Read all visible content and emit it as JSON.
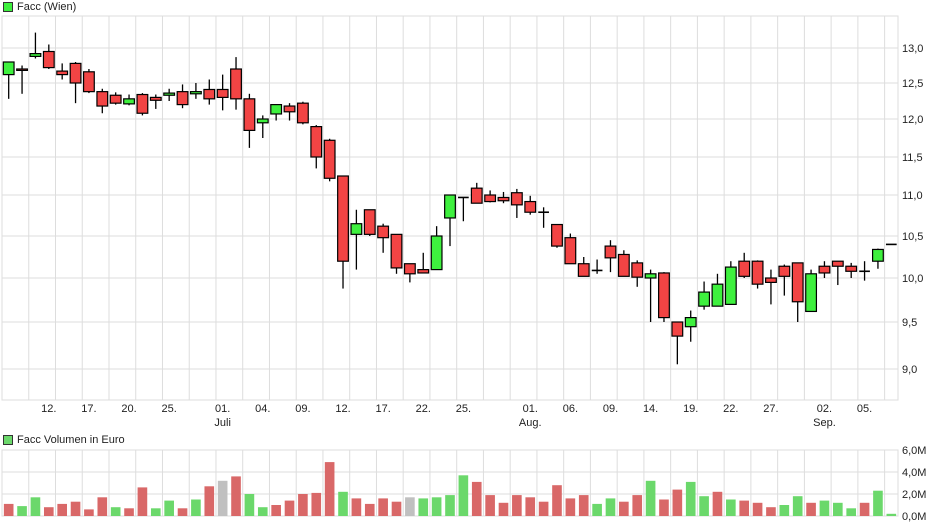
{
  "price_legend": {
    "label": "Facc (Wien)",
    "color": "#3ef03e"
  },
  "volume_legend": {
    "label": "Facc Volumen in Euro",
    "color": "#6bd86b"
  },
  "colors": {
    "up": "#3ef03e",
    "down": "#f24444",
    "vol_up": "#6bd86b",
    "vol_down": "#d96868",
    "vol_neutral": "#c0c0c0",
    "grid": "#dddddd"
  },
  "chart_data": [
    {
      "type": "candlestick",
      "title": "Facc (Wien)",
      "ylabel": "",
      "ylim": [
        8.6,
        13.4
      ],
      "y_ticks": [
        "9,0",
        "9,5",
        "10,0",
        "10,5",
        "11,0",
        "11,5",
        "12,0",
        "12,5",
        "13,0"
      ],
      "x_ticks": [
        "12.",
        "17.",
        "20.",
        "25.",
        "01.",
        "04.",
        "09.",
        "12.",
        "17.",
        "22.",
        "25.",
        "01.",
        "06.",
        "09.",
        "14.",
        "19.",
        "22.",
        "27.",
        "02.",
        "05."
      ],
      "x_month_labels": [
        {
          "at": "01.",
          "index": 4,
          "label": "Juli"
        },
        {
          "at": "01.",
          "index": 11,
          "label": "Aug."
        },
        {
          "at": "02.",
          "index": 18,
          "label": "Sep."
        }
      ],
      "grid": true,
      "ohlc": [
        [
          12.62,
          12.72,
          12.28,
          12.8
        ],
        [
          12.7,
          12.75,
          12.35,
          12.68
        ],
        [
          12.88,
          13.22,
          12.85,
          12.92
        ],
        [
          12.95,
          13.05,
          12.7,
          12.72
        ],
        [
          12.67,
          12.78,
          12.55,
          12.62
        ],
        [
          12.78,
          12.8,
          12.22,
          12.5
        ],
        [
          12.66,
          12.7,
          12.36,
          12.38
        ],
        [
          12.38,
          12.42,
          12.08,
          12.18
        ],
        [
          12.33,
          12.37,
          12.2,
          12.22
        ],
        [
          12.21,
          12.34,
          12.19,
          12.28
        ],
        [
          12.34,
          12.36,
          12.05,
          12.08
        ],
        [
          12.3,
          12.34,
          12.14,
          12.26
        ],
        [
          12.33,
          12.42,
          12.25,
          12.36
        ],
        [
          12.38,
          12.48,
          12.15,
          12.2
        ],
        [
          12.35,
          12.5,
          12.28,
          12.38
        ],
        [
          12.41,
          12.55,
          12.2,
          12.28
        ],
        [
          12.41,
          12.62,
          12.12,
          12.3
        ],
        [
          12.7,
          12.87,
          12.13,
          12.28
        ],
        [
          12.28,
          12.35,
          11.62,
          11.85
        ],
        [
          11.95,
          12.05,
          11.75,
          12.0
        ],
        [
          12.07,
          12.2,
          11.98,
          12.2
        ],
        [
          12.18,
          12.22,
          11.98,
          12.1
        ],
        [
          12.22,
          12.24,
          11.93,
          11.95
        ],
        [
          11.9,
          11.92,
          11.35,
          11.5
        ],
        [
          11.72,
          11.74,
          11.18,
          11.22
        ],
        [
          11.25,
          11.25,
          9.88,
          10.2
        ],
        [
          10.52,
          10.82,
          10.1,
          10.65
        ],
        [
          10.82,
          10.82,
          10.5,
          10.52
        ],
        [
          10.62,
          10.65,
          10.3,
          10.48
        ],
        [
          10.52,
          10.52,
          10.05,
          10.12
        ],
        [
          10.17,
          10.17,
          9.95,
          10.05
        ],
        [
          10.1,
          10.3,
          10.06,
          10.06
        ],
        [
          10.1,
          10.62,
          10.1,
          10.5
        ],
        [
          10.72,
          11.0,
          10.38,
          11.0
        ],
        [
          10.97,
          10.97,
          10.68,
          10.97
        ],
        [
          11.09,
          11.16,
          10.9,
          10.9
        ],
        [
          11.0,
          11.06,
          10.91,
          10.92
        ],
        [
          10.97,
          11.04,
          10.9,
          10.93
        ],
        [
          11.03,
          11.08,
          10.72,
          10.88
        ],
        [
          10.92,
          10.99,
          10.76,
          10.79
        ],
        [
          10.79,
          10.85,
          10.6,
          10.79
        ],
        [
          10.64,
          10.64,
          10.36,
          10.38
        ],
        [
          10.48,
          10.53,
          10.17,
          10.17
        ],
        [
          10.17,
          10.25,
          10.02,
          10.02
        ],
        [
          10.09,
          10.22,
          10.05,
          10.09
        ],
        [
          10.38,
          10.45,
          10.07,
          10.24
        ],
        [
          10.28,
          10.33,
          10.02,
          10.02
        ],
        [
          10.18,
          10.21,
          9.9,
          10.01
        ],
        [
          10.0,
          10.1,
          9.5,
          10.05
        ],
        [
          10.06,
          10.07,
          9.5,
          9.55
        ],
        [
          9.5,
          9.5,
          9.05,
          9.35
        ],
        [
          9.45,
          9.63,
          9.29,
          9.55
        ],
        [
          9.68,
          9.96,
          9.64,
          9.84
        ],
        [
          9.68,
          10.05,
          9.68,
          9.93
        ],
        [
          9.7,
          10.2,
          9.7,
          10.13
        ],
        [
          10.2,
          10.3,
          10.0,
          10.02
        ],
        [
          10.2,
          10.21,
          9.88,
          9.93
        ],
        [
          10.0,
          10.1,
          9.7,
          9.95
        ],
        [
          10.14,
          10.16,
          9.8,
          10.02
        ],
        [
          10.18,
          10.18,
          9.5,
          9.73
        ],
        [
          9.62,
          10.1,
          9.62,
          10.05
        ],
        [
          10.14,
          10.2,
          10.0,
          10.06
        ],
        [
          10.2,
          10.2,
          9.92,
          10.14
        ],
        [
          10.14,
          10.18,
          10.0,
          10.08
        ],
        [
          10.08,
          10.2,
          9.97,
          10.08
        ],
        [
          10.2,
          10.35,
          10.11,
          10.34
        ],
        [
          10.4,
          10.4,
          10.4,
          10.4
        ]
      ],
      "ohlc_format": [
        "open",
        "high",
        "low",
        "close"
      ]
    },
    {
      "type": "bar",
      "title": "Facc Volumen in Euro",
      "ylabel": "",
      "ylim": [
        0,
        6.0
      ],
      "y_ticks": [
        "0,0M",
        "2,0M",
        "4,0M",
        "6,0M"
      ],
      "unit": "M EUR",
      "grid": true,
      "values": [
        1.1,
        0.9,
        1.7,
        0.8,
        1.1,
        1.3,
        0.6,
        1.7,
        0.8,
        0.7,
        2.6,
        0.7,
        1.4,
        0.7,
        1.5,
        2.7,
        3.2,
        3.6,
        2.0,
        0.8,
        1.0,
        1.4,
        2.0,
        2.1,
        4.9,
        2.2,
        1.6,
        1.1,
        1.6,
        1.3,
        1.7,
        1.6,
        1.7,
        1.9,
        3.7,
        3.1,
        1.9,
        1.2,
        1.9,
        1.7,
        1.3,
        2.8,
        1.6,
        1.9,
        1.1,
        1.6,
        1.3,
        1.9,
        3.2,
        1.5,
        2.4,
        3.1,
        1.8,
        2.2,
        1.5,
        1.4,
        1.2,
        0.8,
        1.0,
        1.8,
        1.2,
        1.4,
        1.2,
        0.7,
        1.2,
        2.3,
        0.2
      ],
      "directions": [
        "d",
        "u",
        "u",
        "d",
        "d",
        "d",
        "d",
        "d",
        "u",
        "d",
        "d",
        "u",
        "u",
        "d",
        "u",
        "d",
        "n",
        "d",
        "u",
        "u",
        "d",
        "d",
        "d",
        "d",
        "d",
        "u",
        "d",
        "d",
        "d",
        "d",
        "n",
        "u",
        "u",
        "u",
        "u",
        "d",
        "d",
        "d",
        "d",
        "d",
        "d",
        "d",
        "d",
        "d",
        "u",
        "u",
        "d",
        "d",
        "u",
        "d",
        "d",
        "u",
        "u",
        "d",
        "u",
        "d",
        "d",
        "d",
        "u",
        "u",
        "d",
        "u",
        "u",
        "u",
        "d",
        "u",
        "u"
      ]
    }
  ]
}
